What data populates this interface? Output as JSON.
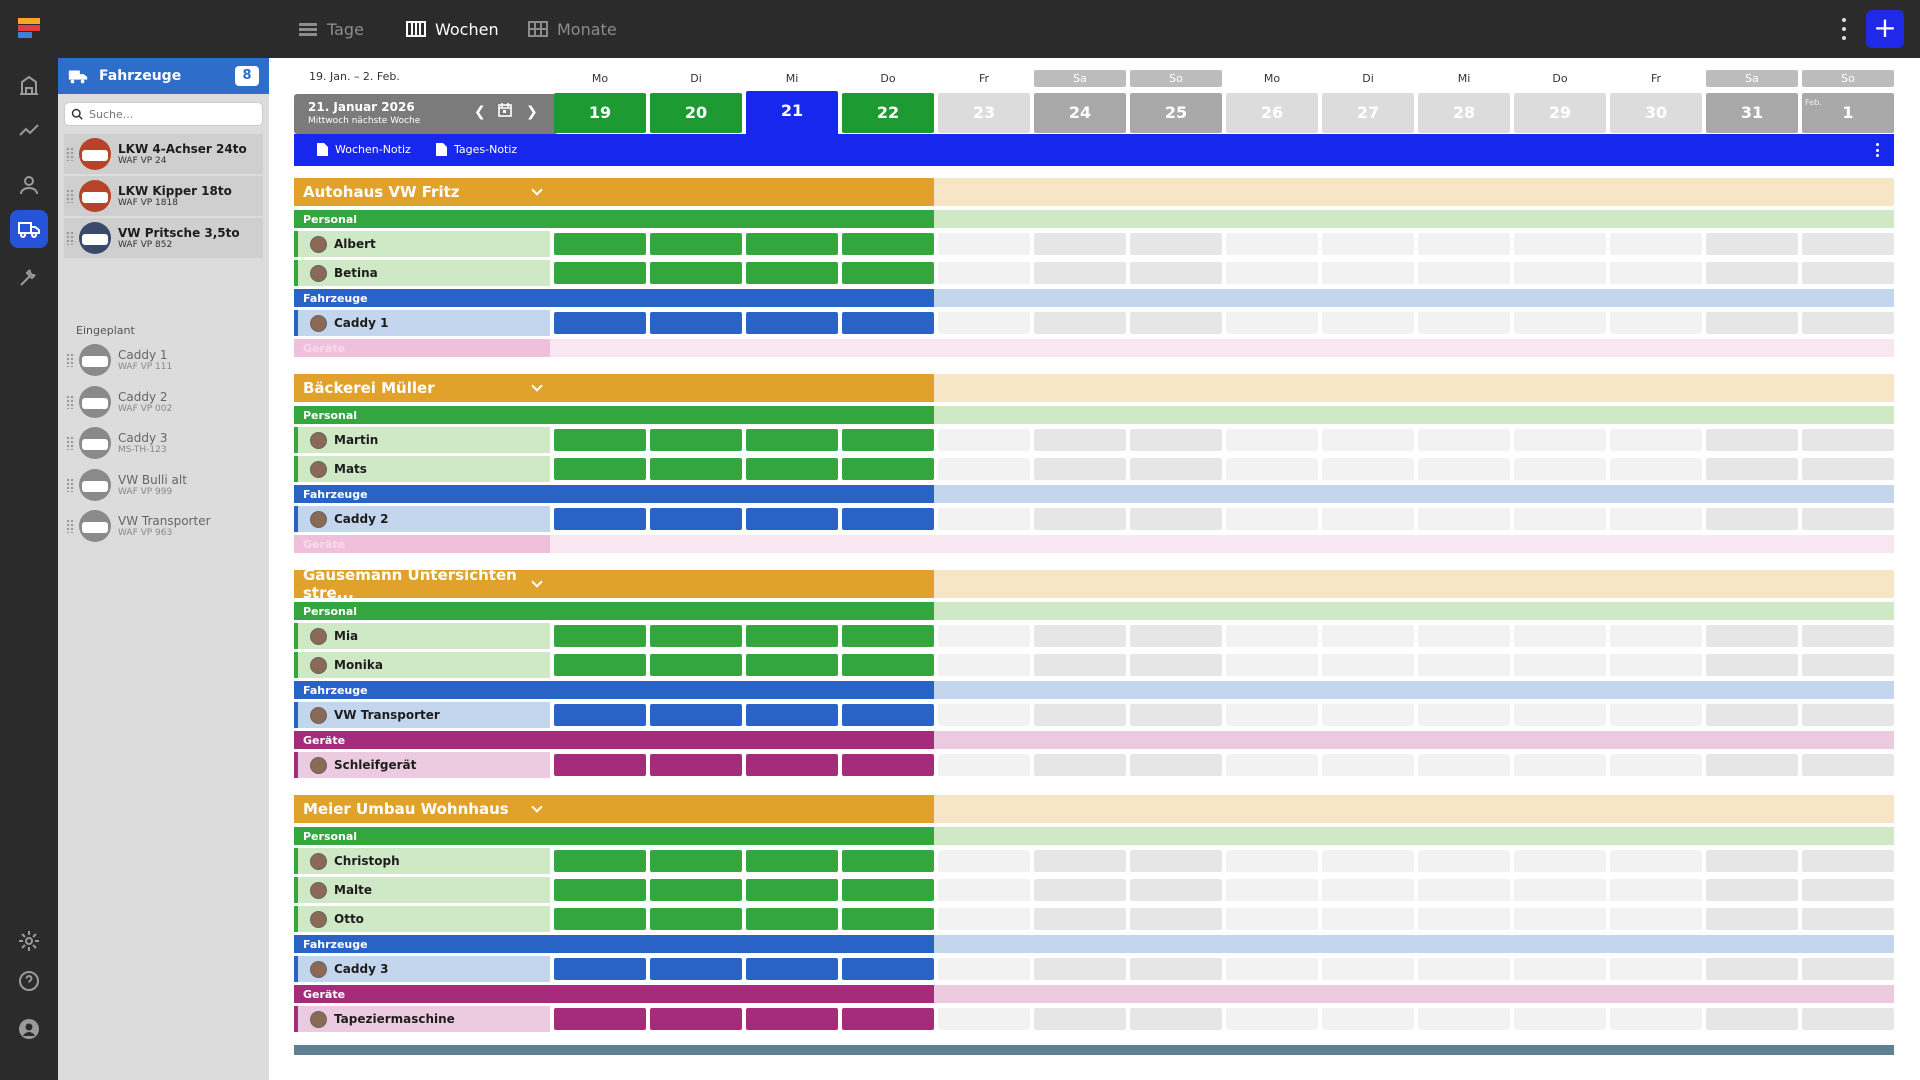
{
  "app": {
    "view_tabs": [
      {
        "label": "Tage",
        "icon": "list-icon"
      },
      {
        "label": "Wochen",
        "icon": "week-grid-icon",
        "active": true
      },
      {
        "label": "Monate",
        "icon": "month-grid-icon"
      }
    ],
    "add_label": "+",
    "accent": "#2129e8"
  },
  "rail": [
    {
      "name": "logo",
      "icon": "logo-icon"
    },
    {
      "name": "home",
      "icon": "building-icon"
    },
    {
      "name": "stats",
      "icon": "chart-line-icon"
    },
    {
      "name": "people",
      "icon": "person-icon"
    },
    {
      "name": "vehicles",
      "icon": "truck-icon",
      "active": true
    },
    {
      "name": "tools",
      "icon": "tools-icon"
    },
    {
      "name": "settings",
      "icon": "gear-icon"
    },
    {
      "name": "help",
      "icon": "help-icon"
    },
    {
      "name": "account",
      "icon": "user-avatar-icon"
    }
  ],
  "sidebar": {
    "title": "Fahrzeuge",
    "count": "8",
    "search_placeholder": "Suche...",
    "planned_label": "Eingeplant",
    "vehicles": [
      {
        "name": "LKW 4-Achser 24to",
        "plate": "WAF VP 24",
        "state": "assigned"
      },
      {
        "name": "LKW Kipper 18to",
        "plate": "WAF VP 1818",
        "state": "assigned"
      },
      {
        "name": "VW Pritsche 3,5to",
        "plate": "WAF VP 852",
        "state": "assigned"
      }
    ],
    "planned": [
      {
        "name": "Caddy 1",
        "plate": "WAF VP 111"
      },
      {
        "name": "Caddy 2",
        "plate": "WAF VP 002"
      },
      {
        "name": "Caddy 3",
        "plate": "MS-TH-123"
      },
      {
        "name": "VW Bulli alt",
        "plate": "WAF VP 999"
      },
      {
        "name": "VW Transporter",
        "plate": "WAF VP 963"
      }
    ]
  },
  "calendar": {
    "range": "19. Jan. – 2. Feb.",
    "current_date": "21. Januar 2026",
    "current_sub": "Mittwoch nächste Woche",
    "days": [
      {
        "dow": "Mo",
        "num": "19",
        "state": "work"
      },
      {
        "dow": "Di",
        "num": "20",
        "state": "work"
      },
      {
        "dow": "Mi",
        "num": "21",
        "state": "today"
      },
      {
        "dow": "Do",
        "num": "22",
        "state": "work"
      },
      {
        "dow": "Fr",
        "num": "23",
        "state": "off"
      },
      {
        "dow": "Sa",
        "num": "24",
        "state": "weekend"
      },
      {
        "dow": "So",
        "num": "25",
        "state": "weekend"
      },
      {
        "dow": "Mo",
        "num": "26",
        "state": "off"
      },
      {
        "dow": "Di",
        "num": "27",
        "state": "off"
      },
      {
        "dow": "Mi",
        "num": "28",
        "state": "off"
      },
      {
        "dow": "Do",
        "num": "29",
        "state": "off"
      },
      {
        "dow": "Fr",
        "num": "30",
        "state": "off"
      },
      {
        "dow": "Sa",
        "num": "31",
        "state": "weekend"
      },
      {
        "dow": "So",
        "num": "1",
        "state": "weekend",
        "month_tag": "Feb."
      }
    ],
    "week_note": "Wochen-Notiz",
    "day_note": "Tages-Notiz",
    "colors": {
      "work": "#1e9a33",
      "today": "#1827ee",
      "off": "#dcdcdc",
      "weekend": "#a9a9a9"
    }
  },
  "sections": {
    "personal": "Personal",
    "fahrzeuge": "Fahrzeuge",
    "geraete": "Geräte"
  },
  "projects": [
    {
      "title": "Autohaus VW Fritz",
      "personal": [
        "Albert",
        "Betina"
      ],
      "fahrzeuge": [
        "Caddy 1"
      ],
      "geraete": []
    },
    {
      "title": "Bäckerei Müller",
      "personal": [
        "Martin",
        "Mats"
      ],
      "fahrzeuge": [
        "Caddy 2"
      ],
      "geraete": []
    },
    {
      "title": "Gausemann Untersichten stre...",
      "personal": [
        "Mia",
        "Monika"
      ],
      "fahrzeuge": [
        "VW Transporter"
      ],
      "geraete": [
        "Schleifgerät"
      ]
    },
    {
      "title": "Meier Umbau Wohnhaus",
      "personal": [
        "Christoph",
        "Malte",
        "Otto"
      ],
      "fahrzeuge": [
        "Caddy 3"
      ],
      "geraete": [
        "Tapeziermaschine"
      ]
    }
  ],
  "row_colors": {
    "project": "#e1a22b",
    "project_light": "#f6e6c6",
    "personal": "#33a63d",
    "personal_light": "#cfe8c6",
    "fahrzeuge": "#2a63c6",
    "fahrzeuge_light": "#c4d6ee",
    "geraete": "#a42c7a",
    "geraete_light": "#eccbe0",
    "geraete_empty": "#f0bfdc"
  }
}
